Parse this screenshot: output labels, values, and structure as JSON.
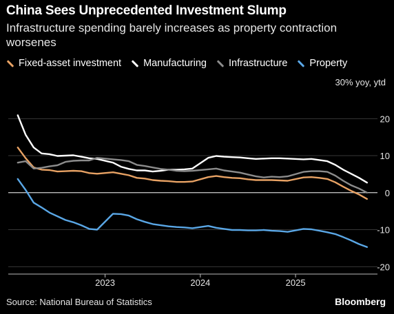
{
  "header": {
    "title": "China Sees Unprecedented Investment Slump",
    "subtitle": "Infrastructure spending barely increases as property contraction worsenes"
  },
  "units_label": "30% yoy, ytd",
  "footer": {
    "source": "Source: National Bureau of Statistics",
    "brand": "Bloomberg"
  },
  "colors": {
    "fixed_asset": "#e8a264",
    "manufacturing": "#ffffff",
    "infrastructure": "#8c8c8c",
    "property": "#5aa7e6",
    "grid": "#4a4a4a",
    "zero": "#d0d0d0"
  },
  "chart_data": {
    "type": "line",
    "x": [
      "2022-02",
      "2022-03",
      "2022-04",
      "2022-05",
      "2022-06",
      "2022-07",
      "2022-08",
      "2022-09",
      "2022-10",
      "2022-11",
      "2022-12",
      "2023-02",
      "2023-03",
      "2023-04",
      "2023-05",
      "2023-06",
      "2023-07",
      "2023-08",
      "2023-09",
      "2023-10",
      "2023-11",
      "2023-12",
      "2024-02",
      "2024-03",
      "2024-04",
      "2024-05",
      "2024-06",
      "2024-07",
      "2024-08",
      "2024-09",
      "2024-10",
      "2024-11",
      "2024-12",
      "2025-02",
      "2025-03",
      "2025-04",
      "2025-05",
      "2025-06",
      "2025-07",
      "2025-08",
      "2025-09",
      "2025-10"
    ],
    "x_ticks": [
      "2023",
      "2024",
      "2025"
    ],
    "ylim": [
      -22,
      26
    ],
    "y_ticks": [
      20,
      10,
      0,
      -10,
      -20
    ],
    "y_tick_labels": [
      "20",
      "10",
      "0",
      "-10",
      "-20"
    ],
    "grid": true,
    "legend": "top",
    "series": [
      {
        "name": "Fixed-asset investment",
        "key": "fixed_asset",
        "values": [
          12.2,
          9.3,
          6.8,
          6.2,
          6.1,
          5.7,
          5.8,
          5.9,
          5.8,
          5.3,
          5.1,
          5.5,
          5.1,
          4.7,
          4.0,
          3.8,
          3.4,
          3.2,
          3.1,
          2.9,
          2.9,
          3.0,
          4.2,
          4.5,
          4.2,
          4.0,
          3.9,
          3.6,
          3.4,
          3.4,
          3.4,
          3.3,
          3.2,
          4.1,
          4.2,
          4.0,
          3.7,
          2.8,
          1.6,
          0.5,
          -0.5,
          -1.7
        ]
      },
      {
        "name": "Manufacturing",
        "key": "manufacturing",
        "values": [
          20.9,
          15.6,
          12.2,
          10.6,
          10.4,
          9.9,
          10.0,
          10.1,
          9.7,
          9.3,
          9.1,
          8.1,
          7.0,
          6.4,
          6.0,
          6.0,
          5.7,
          5.9,
          6.2,
          6.2,
          6.3,
          6.5,
          9.4,
          9.9,
          9.7,
          9.6,
          9.5,
          9.3,
          9.1,
          9.2,
          9.3,
          9.3,
          9.2,
          9.0,
          9.1,
          8.8,
          8.5,
          7.5,
          6.2,
          5.1,
          4.0,
          2.7
        ]
      },
      {
        "name": "Infrastructure",
        "key": "infrastructure",
        "values": [
          8.1,
          8.5,
          6.5,
          6.7,
          7.1,
          7.4,
          8.3,
          8.6,
          8.7,
          8.7,
          9.4,
          9.0,
          8.8,
          8.5,
          7.5,
          7.2,
          6.8,
          6.4,
          6.2,
          5.9,
          5.8,
          5.9,
          6.3,
          6.5,
          6.0,
          5.7,
          5.4,
          4.9,
          4.4,
          4.1,
          4.3,
          4.2,
          4.4,
          5.6,
          5.8,
          5.8,
          5.6,
          4.6,
          3.2,
          2.0,
          1.1,
          0.0
        ]
      },
      {
        "name": "Property",
        "key": "property",
        "values": [
          3.7,
          0.7,
          -2.7,
          -4.0,
          -5.4,
          -6.4,
          -7.4,
          -8.0,
          -8.8,
          -9.8,
          -10.0,
          -5.7,
          -5.8,
          -6.2,
          -7.2,
          -7.9,
          -8.5,
          -8.8,
          -9.1,
          -9.3,
          -9.4,
          -9.6,
          -9.0,
          -9.5,
          -9.8,
          -10.1,
          -10.1,
          -10.2,
          -10.2,
          -10.1,
          -10.3,
          -10.4,
          -10.6,
          -9.8,
          -9.9,
          -10.3,
          -10.7,
          -11.2,
          -12.0,
          -12.9,
          -13.9,
          -14.7
        ]
      }
    ]
  }
}
